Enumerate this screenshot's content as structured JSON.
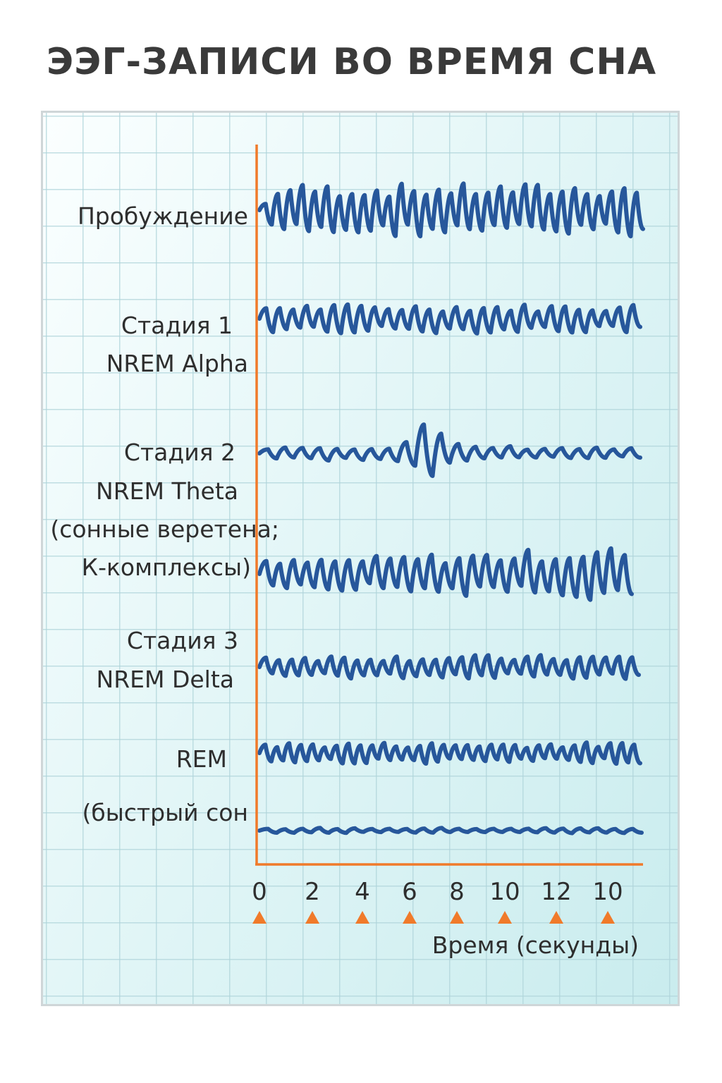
{
  "title": "ЭЭГ-ЗАПИСИ ВО ВРЕМЯ СНА",
  "colors": {
    "axis": "#f07a2a",
    "trace": "#27579b",
    "marker": "#f07a2a"
  },
  "chart_data": {
    "type": "line",
    "title": "ЭЭГ-ЗАПИСИ ВО ВРЕМЯ СНА",
    "xlabel": "Время (секунды)",
    "ylabel": "",
    "x_ticks": [
      "0",
      "2",
      "4",
      "6",
      "8",
      "10",
      "12",
      "10"
    ],
    "grid": true,
    "tick_markers": "triangle",
    "series": [
      {
        "name": "Пробуждение",
        "label_lines": [
          "Пробуждение"
        ],
        "amplitude": 1.0,
        "cycles": 31,
        "pattern": "high-frequency-large"
      },
      {
        "name": "Стадия 1 NREM Alpha",
        "label_lines": [
          "Стадия 1",
          "NREM Alpha"
        ],
        "amplitude": 0.55,
        "cycles": 28,
        "pattern": "alpha"
      },
      {
        "name": "Стадия 2 NREM Theta (сонные веретена; К-комплексы)",
        "label_lines": [
          "Стадия 2",
          "NREM Theta",
          "(сонные веретена;",
          "К-комплексы)"
        ],
        "amplitude": 0.3,
        "cycles": 22,
        "pattern": "spindle-burst"
      },
      {
        "name": "",
        "label_lines": [],
        "amplitude": 0.9,
        "cycles": 27,
        "pattern": "rising"
      },
      {
        "name": "Стадия 3 NREM Delta",
        "label_lines": [
          "Стадия 3",
          "NREM Delta"
        ],
        "amplitude": 0.45,
        "cycles": 29,
        "pattern": "delta"
      },
      {
        "name": "REM",
        "label_lines": [
          "REM"
        ],
        "amplitude": 0.4,
        "cycles": 32,
        "pattern": "rem"
      },
      {
        "name": "(быстрый сон",
        "label_lines": [
          "(быстрый сон"
        ],
        "amplitude": 0.1,
        "cycles": 22,
        "pattern": "flat"
      }
    ]
  }
}
